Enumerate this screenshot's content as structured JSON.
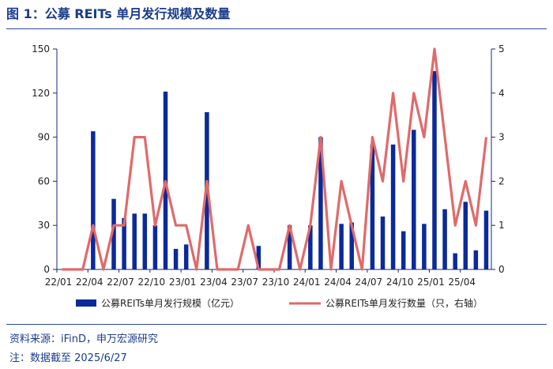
{
  "title": "图 1：公募 REITs 单月发行规模及数量",
  "source": "资料来源：iFinD，申万宏源研究",
  "note": "注：数据截至 2025/6/27",
  "colors": {
    "bar": "#0a2a9a",
    "line": "#e06a6a",
    "axis": "#1a2a6c",
    "title": "#1a3c8c"
  },
  "chart_data": {
    "type": "bar",
    "title": "",
    "x_tick_labels": [
      "22/01",
      "22/04",
      "22/07",
      "22/10",
      "23/01",
      "23/04",
      "23/07",
      "23/10",
      "24/01",
      "24/04",
      "24/07",
      "24/10",
      "25/01",
      "25/04"
    ],
    "x": [
      "22/01",
      "22/02",
      "22/03",
      "22/04",
      "22/05",
      "22/06",
      "22/07",
      "22/08",
      "22/09",
      "22/10",
      "22/11",
      "22/12",
      "23/01",
      "23/02",
      "23/03",
      "23/04",
      "23/05",
      "23/06",
      "23/07",
      "23/08",
      "23/09",
      "23/10",
      "23/11",
      "23/12",
      "24/01",
      "24/02",
      "24/03",
      "24/04",
      "24/05",
      "24/06",
      "24/07",
      "24/08",
      "24/09",
      "24/10",
      "24/11",
      "24/12",
      "25/01",
      "25/02",
      "25/03",
      "25/04",
      "25/05",
      "25/06"
    ],
    "y_left_ticks": [
      0,
      30,
      60,
      90,
      120,
      150
    ],
    "y_right_ticks": [
      0,
      1,
      2,
      3,
      4,
      5
    ],
    "ylim_left": [
      0,
      150
    ],
    "ylim_right": [
      0,
      5
    ],
    "series": [
      {
        "name": "公募REITs单月发行规模（亿元）",
        "type": "bar",
        "axis": "left",
        "values": [
          0,
          0,
          0,
          94,
          0,
          48,
          35,
          38,
          38,
          30,
          121,
          14,
          17,
          0,
          107,
          0,
          0,
          0,
          0,
          16,
          0,
          0,
          30,
          0,
          30,
          90,
          0,
          31,
          32,
          0,
          85,
          36,
          85,
          26,
          95,
          31,
          135,
          41,
          11,
          46,
          13,
          40
        ]
      },
      {
        "name": "公募REITs单月发行数量（只，右轴）",
        "type": "line",
        "axis": "right",
        "values": [
          0,
          0,
          0,
          1,
          0,
          1,
          1,
          3,
          3,
          1,
          2,
          1,
          1,
          0,
          2,
          0,
          0,
          0,
          1,
          0,
          0,
          0,
          1,
          0,
          1,
          3,
          0,
          2,
          1,
          0,
          3,
          2,
          4,
          2,
          4,
          3,
          5,
          3,
          1,
          2,
          1,
          3
        ]
      }
    ],
    "legend_position": "bottom",
    "grid": false
  }
}
